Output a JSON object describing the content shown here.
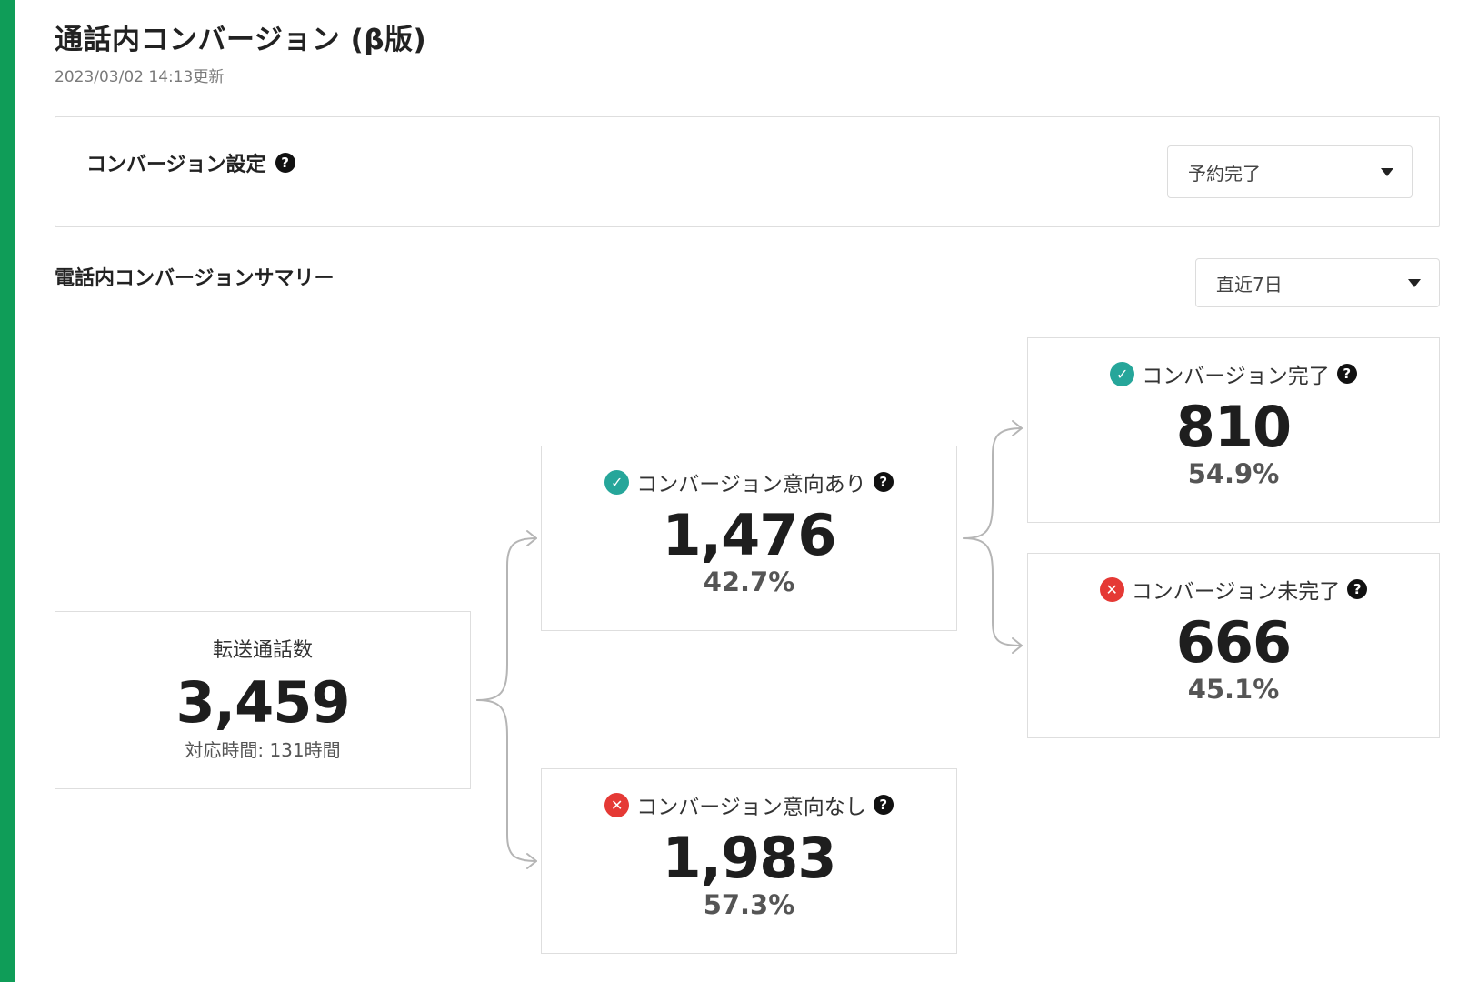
{
  "header": {
    "title": "通話内コンバージョン (β版)",
    "updated": "2023/03/02 14:13更新"
  },
  "settings": {
    "label": "コンバージョン設定",
    "help_icon": "?",
    "selected_value": "予約完了"
  },
  "summary": {
    "title": "電話内コンバージョンサマリー",
    "period_selected": "直近7日"
  },
  "cards": {
    "total": {
      "label": "転送通話数",
      "value": "3,459",
      "sub": "対応時間: 131時間"
    },
    "intent": {
      "label": "コンバージョン意向あり",
      "value": "1,476",
      "percent": "42.7%",
      "status": "check-icon"
    },
    "no_intent": {
      "label": "コンバージョン意向なし",
      "value": "1,983",
      "percent": "57.3%",
      "status": "cross-icon"
    },
    "done": {
      "label": "コンバージョン完了",
      "value": "810",
      "percent": "54.9%",
      "status": "check-icon"
    },
    "not_done": {
      "label": "コンバージョン未完了",
      "value": "666",
      "percent": "45.1%",
      "status": "cross-icon"
    }
  },
  "colors": {
    "accent": "#0f9d58",
    "ok": "#26a69a",
    "ng": "#e53935",
    "connector": "#b5b5b5"
  },
  "icons": {
    "check": "✓",
    "cross": "✕"
  }
}
